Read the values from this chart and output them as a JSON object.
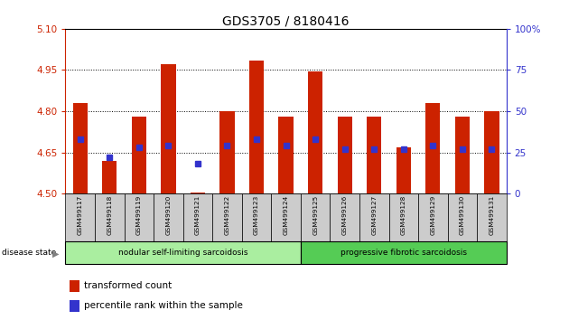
{
  "title": "GDS3705 / 8180416",
  "samples": [
    "GSM499117",
    "GSM499118",
    "GSM499119",
    "GSM499120",
    "GSM499121",
    "GSM499122",
    "GSM499123",
    "GSM499124",
    "GSM499125",
    "GSM499126",
    "GSM499127",
    "GSM499128",
    "GSM499129",
    "GSM499130",
    "GSM499131"
  ],
  "bar_values": [
    4.83,
    4.62,
    4.78,
    4.97,
    4.505,
    4.8,
    4.985,
    4.78,
    4.945,
    4.78,
    4.78,
    4.67,
    4.83,
    4.78,
    4.8
  ],
  "percentile_values": [
    33,
    22,
    28,
    29,
    18,
    29,
    33,
    29,
    33,
    27,
    27,
    27,
    29,
    27,
    27
  ],
  "bar_bottom": 4.5,
  "ylim_left": [
    4.5,
    5.1
  ],
  "ylim_right": [
    0,
    100
  ],
  "yticks_left": [
    4.5,
    4.65,
    4.8,
    4.95,
    5.1
  ],
  "yticks_right": [
    0,
    25,
    50,
    75,
    100
  ],
  "ytick_right_labels": [
    "0",
    "25",
    "50",
    "75",
    "100%"
  ],
  "group1_label": "nodular self-limiting sarcoidosis",
  "group1_count": 8,
  "group2_label": "progressive fibrotic sarcoidosis",
  "group2_count": 7,
  "disease_state_label": "disease state",
  "legend_bar_label": "transformed count",
  "legend_pct_label": "percentile rank within the sample",
  "bar_color": "#cc2200",
  "pct_color": "#3333cc",
  "group1_color": "#aaeea0",
  "group2_color": "#55cc55",
  "right_axis_color": "#3333cc",
  "left_axis_color": "#cc2200",
  "sample_bg_color": "#cccccc",
  "fig_width": 6.3,
  "fig_height": 3.54,
  "fig_dpi": 100
}
